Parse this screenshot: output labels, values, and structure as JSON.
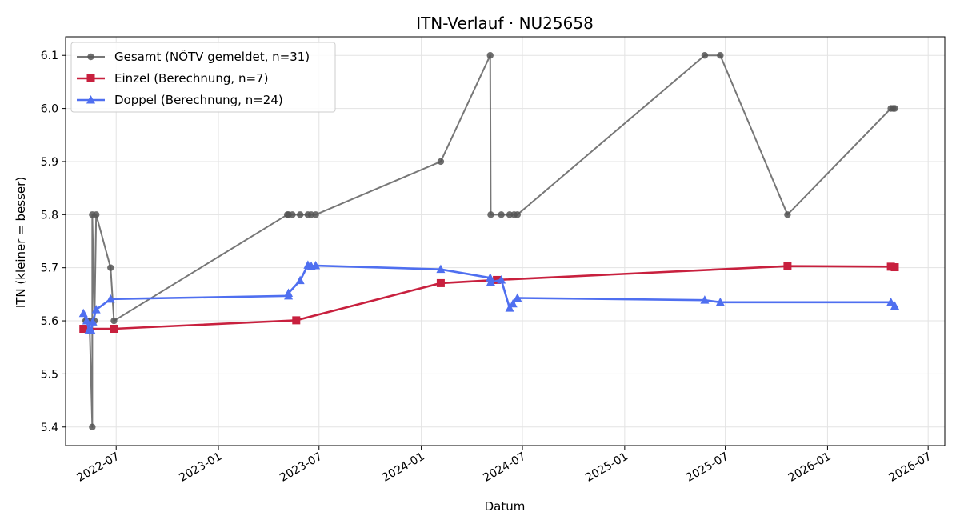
{
  "chart_data": {
    "type": "line",
    "title": "ITN-Verlauf · NU25658",
    "xlabel": "Datum",
    "ylabel": "ITN  (kleiner = besser)",
    "x_type": "date",
    "xlim": [
      "2022-04-01",
      "2026-07-31"
    ],
    "ylim": [
      5.365,
      6.135
    ],
    "x_ticks": [
      "2022-07",
      "2023-01",
      "2023-07",
      "2024-01",
      "2024-07",
      "2025-01",
      "2025-07",
      "2026-01",
      "2026-07"
    ],
    "y_ticks": [
      5.4,
      5.5,
      5.6,
      5.7,
      5.8,
      5.9,
      6.0,
      6.1
    ],
    "grid": true,
    "legend": "top-left",
    "series": [
      {
        "name": "Gesamt (NÖTV gemeldet, n=31)",
        "color": "#555555",
        "marker": "circle",
        "points": [
          {
            "x": "2022-05-07",
            "y": 5.6
          },
          {
            "x": "2022-05-09",
            "y": 5.6
          },
          {
            "x": "2022-05-11",
            "y": 5.6
          },
          {
            "x": "2022-05-14",
            "y": 5.6
          },
          {
            "x": "2022-05-19",
            "y": 5.4
          },
          {
            "x": "2022-05-19",
            "y": 5.8
          },
          {
            "x": "2022-05-23",
            "y": 5.6
          },
          {
            "x": "2022-05-26",
            "y": 5.8
          },
          {
            "x": "2022-06-21",
            "y": 5.7
          },
          {
            "x": "2022-06-27",
            "y": 5.6
          },
          {
            "x": "2023-05-05",
            "y": 5.8
          },
          {
            "x": "2023-05-07",
            "y": 5.8
          },
          {
            "x": "2023-05-14",
            "y": 5.8
          },
          {
            "x": "2023-05-28",
            "y": 5.8
          },
          {
            "x": "2023-06-11",
            "y": 5.8
          },
          {
            "x": "2023-06-17",
            "y": 5.8
          },
          {
            "x": "2023-06-25",
            "y": 5.8
          },
          {
            "x": "2024-02-05",
            "y": 5.9
          },
          {
            "x": "2024-05-04",
            "y": 6.1
          },
          {
            "x": "2024-05-05",
            "y": 5.8
          },
          {
            "x": "2024-05-24",
            "y": 5.8
          },
          {
            "x": "2024-06-08",
            "y": 5.8
          },
          {
            "x": "2024-06-16",
            "y": 5.8
          },
          {
            "x": "2024-06-22",
            "y": 5.8
          },
          {
            "x": "2025-05-25",
            "y": 6.1
          },
          {
            "x": "2025-06-22",
            "y": 6.1
          },
          {
            "x": "2025-10-21",
            "y": 5.8
          },
          {
            "x": "2026-04-25",
            "y": 6.0
          },
          {
            "x": "2026-04-29",
            "y": 6.0
          },
          {
            "x": "2026-05-02",
            "y": 6.0
          }
        ]
      },
      {
        "name": "Einzel (Berechnung, n=7)",
        "color": "#c8203e",
        "marker": "square",
        "points": [
          {
            "x": "2022-05-03",
            "y": 5.585
          },
          {
            "x": "2022-06-27",
            "y": 5.585
          },
          {
            "x": "2023-05-21",
            "y": 5.601
          },
          {
            "x": "2024-02-05",
            "y": 5.671
          },
          {
            "x": "2024-05-16",
            "y": 5.677
          },
          {
            "x": "2025-10-21",
            "y": 5.703
          },
          {
            "x": "2026-04-25",
            "y": 5.702
          },
          {
            "x": "2026-05-02",
            "y": 5.701
          }
        ]
      },
      {
        "name": "Doppel (Berechnung, n=24)",
        "color": "#4f6ff0",
        "marker": "triangle",
        "points": [
          {
            "x": "2022-05-03",
            "y": 5.614
          },
          {
            "x": "2022-05-09",
            "y": 5.6
          },
          {
            "x": "2022-05-13",
            "y": 5.583
          },
          {
            "x": "2022-05-17",
            "y": 5.582
          },
          {
            "x": "2022-05-20",
            "y": 5.598
          },
          {
            "x": "2022-05-26",
            "y": 5.621
          },
          {
            "x": "2022-06-21",
            "y": 5.641
          },
          {
            "x": "2023-05-07",
            "y": 5.647
          },
          {
            "x": "2023-05-07",
            "y": 5.652
          },
          {
            "x": "2023-05-28",
            "y": 5.676
          },
          {
            "x": "2023-06-11",
            "y": 5.705
          },
          {
            "x": "2023-06-17",
            "y": 5.703
          },
          {
            "x": "2023-06-25",
            "y": 5.704
          },
          {
            "x": "2024-02-05",
            "y": 5.697
          },
          {
            "x": "2024-05-04",
            "y": 5.681
          },
          {
            "x": "2024-05-05",
            "y": 5.673
          },
          {
            "x": "2024-05-24",
            "y": 5.677
          },
          {
            "x": "2024-06-08",
            "y": 5.624
          },
          {
            "x": "2024-06-14",
            "y": 5.632
          },
          {
            "x": "2024-06-22",
            "y": 5.643
          },
          {
            "x": "2025-05-25",
            "y": 5.639
          },
          {
            "x": "2025-06-22",
            "y": 5.635
          },
          {
            "x": "2026-04-25",
            "y": 5.635
          },
          {
            "x": "2026-05-02",
            "y": 5.628
          }
        ]
      }
    ]
  }
}
